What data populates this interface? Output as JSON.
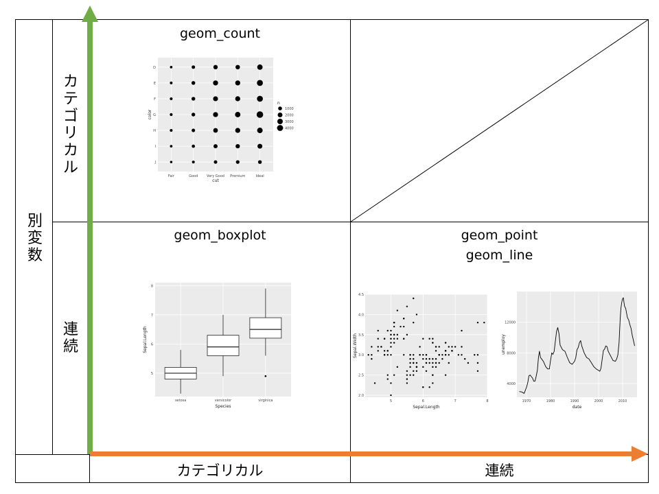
{
  "row_header": {
    "outer": "別変数",
    "categorical": "カテゴリカル",
    "continuous": "連続"
  },
  "col_header": {
    "categorical": "カテゴリカル",
    "continuous": "連続"
  },
  "cells": {
    "cat_cat": "geom_count",
    "cat_cont": "geom_boxplot",
    "cont_cont_1": "geom_point",
    "cont_cont_2": "geom_line"
  },
  "colors": {
    "y_arrow": "#70ad47",
    "x_arrow": "#ed7d31",
    "panel_bg": "#ebebeb"
  },
  "chart_data": [
    {
      "type": "scatter",
      "title": "geom_count",
      "xlabel": "cut",
      "ylabel": "color",
      "categories_x": [
        "Fair",
        "Good",
        "Very Good",
        "Premium",
        "Ideal"
      ],
      "categories_y": [
        "D",
        "E",
        "F",
        "G",
        "H",
        "I",
        "J"
      ],
      "legend_title": "n",
      "legend": [
        "1000",
        "2000",
        "3000",
        "4000"
      ],
      "legend_placement": "right",
      "grid": true,
      "counts": [
        [
          163,
          662,
          1513,
          1603,
          2834
        ],
        [
          224,
          933,
          2400,
          2337,
          3903
        ],
        [
          312,
          909,
          2164,
          2331,
          3826
        ],
        [
          314,
          871,
          2299,
          2924,
          4884
        ],
        [
          303,
          702,
          1824,
          2360,
          3115
        ],
        [
          175,
          522,
          1204,
          1428,
          2093
        ],
        [
          119,
          307,
          678,
          808,
          896
        ]
      ]
    },
    {
      "type": "box",
      "title": "geom_boxplot",
      "xlabel": "Species",
      "ylabel": "Sepal.Length",
      "categories": [
        "setosa",
        "versicolor",
        "virginica"
      ],
      "yticks": [
        5,
        6,
        7,
        8
      ],
      "ylim": [
        4.2,
        8.1
      ],
      "grid": true,
      "boxes": [
        {
          "min": 4.3,
          "q1": 4.8,
          "median": 5.0,
          "q3": 5.2,
          "max": 5.8,
          "outliers": []
        },
        {
          "min": 4.9,
          "q1": 5.6,
          "median": 5.9,
          "q3": 6.3,
          "max": 7.0,
          "outliers": []
        },
        {
          "min": 5.6,
          "q1": 6.2,
          "median": 6.5,
          "q3": 6.9,
          "max": 7.9,
          "outliers": [
            4.9
          ]
        }
      ]
    },
    {
      "type": "scatter",
      "title": "geom_point",
      "xlabel": "Sepal.Length",
      "ylabel": "Sepal.Width",
      "xticks": [
        5,
        6,
        7,
        8
      ],
      "yticks": [
        "2.0",
        "2.5",
        "3.0",
        "3.5",
        "4.0",
        "4.5"
      ],
      "xlim": [
        4.2,
        8.0
      ],
      "ylim": [
        1.95,
        4.5
      ],
      "grid": true,
      "points": [
        [
          5.1,
          3.5
        ],
        [
          4.9,
          3.0
        ],
        [
          4.7,
          3.2
        ],
        [
          4.6,
          3.1
        ],
        [
          5.0,
          3.6
        ],
        [
          5.4,
          3.9
        ],
        [
          4.6,
          3.4
        ],
        [
          5.0,
          3.4
        ],
        [
          4.4,
          2.9
        ],
        [
          4.9,
          3.1
        ],
        [
          5.4,
          3.7
        ],
        [
          4.8,
          3.4
        ],
        [
          4.8,
          3.0
        ],
        [
          4.3,
          3.0
        ],
        [
          5.8,
          4.0
        ],
        [
          5.7,
          4.4
        ],
        [
          5.4,
          3.9
        ],
        [
          5.1,
          3.5
        ],
        [
          5.7,
          3.8
        ],
        [
          5.1,
          3.8
        ],
        [
          5.4,
          3.4
        ],
        [
          5.1,
          3.7
        ],
        [
          4.6,
          3.6
        ],
        [
          5.1,
          3.3
        ],
        [
          4.8,
          3.4
        ],
        [
          5.0,
          3.0
        ],
        [
          5.0,
          3.4
        ],
        [
          5.2,
          3.5
        ],
        [
          5.2,
          3.4
        ],
        [
          4.7,
          3.2
        ],
        [
          4.8,
          3.1
        ],
        [
          5.4,
          3.4
        ],
        [
          5.2,
          4.1
        ],
        [
          5.5,
          4.2
        ],
        [
          4.9,
          3.1
        ],
        [
          5.0,
          3.2
        ],
        [
          5.5,
          3.5
        ],
        [
          4.9,
          3.6
        ],
        [
          4.4,
          3.0
        ],
        [
          5.1,
          3.4
        ],
        [
          5.0,
          3.5
        ],
        [
          4.5,
          2.3
        ],
        [
          4.4,
          3.2
        ],
        [
          5.0,
          3.5
        ],
        [
          5.1,
          3.8
        ],
        [
          4.8,
          3.0
        ],
        [
          5.1,
          3.8
        ],
        [
          4.6,
          3.2
        ],
        [
          5.3,
          3.7
        ],
        [
          5.0,
          3.3
        ],
        [
          7.0,
          3.2
        ],
        [
          6.4,
          3.2
        ],
        [
          6.9,
          3.1
        ],
        [
          5.5,
          2.3
        ],
        [
          6.5,
          2.8
        ],
        [
          5.7,
          2.8
        ],
        [
          6.3,
          3.3
        ],
        [
          4.9,
          2.4
        ],
        [
          6.6,
          2.9
        ],
        [
          5.2,
          2.7
        ],
        [
          5.0,
          2.0
        ],
        [
          5.9,
          3.0
        ],
        [
          6.0,
          2.2
        ],
        [
          6.1,
          2.9
        ],
        [
          5.6,
          2.9
        ],
        [
          6.7,
          3.1
        ],
        [
          5.6,
          3.0
        ],
        [
          5.8,
          2.7
        ],
        [
          6.2,
          2.2
        ],
        [
          5.6,
          2.5
        ],
        [
          5.9,
          3.2
        ],
        [
          6.1,
          2.8
        ],
        [
          6.3,
          2.5
        ],
        [
          6.1,
          2.8
        ],
        [
          6.4,
          2.9
        ],
        [
          6.6,
          3.0
        ],
        [
          6.8,
          2.8
        ],
        [
          6.7,
          3.0
        ],
        [
          6.0,
          2.9
        ],
        [
          5.7,
          2.6
        ],
        [
          5.5,
          2.4
        ],
        [
          5.5,
          2.4
        ],
        [
          5.8,
          2.7
        ],
        [
          6.0,
          2.7
        ],
        [
          5.4,
          3.0
        ],
        [
          6.0,
          3.4
        ],
        [
          6.7,
          3.1
        ],
        [
          6.3,
          2.3
        ],
        [
          5.6,
          3.0
        ],
        [
          5.5,
          2.5
        ],
        [
          5.5,
          2.6
        ],
        [
          6.1,
          3.0
        ],
        [
          5.8,
          2.6
        ],
        [
          5.0,
          2.3
        ],
        [
          5.6,
          2.7
        ],
        [
          5.7,
          3.0
        ],
        [
          5.7,
          2.9
        ],
        [
          6.2,
          2.9
        ],
        [
          5.1,
          2.5
        ],
        [
          5.7,
          2.8
        ],
        [
          6.3,
          3.3
        ],
        [
          5.8,
          2.7
        ],
        [
          7.1,
          3.0
        ],
        [
          6.3,
          2.9
        ],
        [
          6.5,
          3.0
        ],
        [
          7.6,
          3.0
        ],
        [
          4.9,
          2.5
        ],
        [
          7.3,
          2.9
        ],
        [
          6.7,
          2.5
        ],
        [
          7.2,
          3.6
        ],
        [
          6.5,
          3.2
        ],
        [
          6.4,
          2.7
        ],
        [
          6.8,
          3.0
        ],
        [
          5.7,
          2.5
        ],
        [
          5.8,
          2.8
        ],
        [
          6.4,
          3.2
        ],
        [
          6.5,
          3.0
        ],
        [
          7.7,
          3.8
        ],
        [
          7.7,
          2.6
        ],
        [
          6.0,
          2.2
        ],
        [
          6.9,
          3.2
        ],
        [
          5.6,
          2.8
        ],
        [
          7.7,
          2.8
        ],
        [
          6.3,
          2.7
        ],
        [
          6.7,
          3.3
        ],
        [
          7.2,
          3.2
        ],
        [
          6.2,
          2.8
        ],
        [
          6.1,
          3.0
        ],
        [
          6.4,
          2.8
        ],
        [
          7.2,
          3.0
        ],
        [
          7.4,
          2.8
        ],
        [
          7.9,
          3.8
        ],
        [
          6.4,
          2.8
        ],
        [
          6.3,
          2.8
        ],
        [
          6.1,
          2.6
        ],
        [
          7.7,
          3.0
        ],
        [
          6.3,
          3.4
        ],
        [
          6.4,
          3.1
        ],
        [
          6.0,
          3.0
        ],
        [
          6.9,
          3.1
        ],
        [
          6.7,
          3.1
        ],
        [
          6.9,
          3.1
        ],
        [
          5.8,
          2.7
        ],
        [
          6.8,
          3.2
        ],
        [
          6.7,
          3.3
        ],
        [
          6.7,
          3.0
        ],
        [
          6.3,
          2.5
        ],
        [
          6.5,
          3.0
        ],
        [
          6.2,
          3.4
        ],
        [
          5.9,
          3.0
        ]
      ]
    },
    {
      "type": "line",
      "title": "geom_line",
      "xlabel": "date",
      "ylabel": "unemploy",
      "xticks": [
        "1970",
        "1980",
        "1990",
        "2000",
        "2010"
      ],
      "yticks": [
        "4000",
        "8000",
        "12000"
      ],
      "xlim": [
        1966,
        2016
      ],
      "ylim": [
        2200,
        16000
      ],
      "grid": true,
      "x": [
        1967,
        1968,
        1969,
        1970,
        1970.5,
        1971,
        1971.5,
        1972,
        1972.5,
        1973,
        1973.5,
        1974,
        1974.5,
        1975,
        1975.4,
        1975.8,
        1976.3,
        1977,
        1978,
        1978.8,
        1979.5,
        1980,
        1980.5,
        1981,
        1981.5,
        1982,
        1982.5,
        1983,
        1983.5,
        1984,
        1985,
        1986,
        1987,
        1988,
        1989,
        1990,
        1990.5,
        1991,
        1991.5,
        1992,
        1992.5,
        1993,
        1994,
        1995,
        1996,
        1997,
        1998,
        1999,
        2000,
        2000.5,
        2001,
        2001.5,
        2002,
        2002.5,
        2003,
        2003.5,
        2004,
        2005,
        2006,
        2007,
        2007.5,
        2008,
        2008.5,
        2009,
        2009.3,
        2009.6,
        2009.9,
        2010.3,
        2010.8,
        2011.3,
        2012,
        2012.5,
        2013,
        2013.5,
        2014,
        2014.5,
        2015
      ],
      "y": [
        2944,
        2900,
        2700,
        3500,
        4100,
        5000,
        5100,
        4900,
        4700,
        4300,
        4300,
        4900,
        5700,
        7500,
        8200,
        7400,
        7200,
        6900,
        6200,
        5900,
        5900,
        7000,
        8000,
        7800,
        8200,
        9500,
        10800,
        11300,
        10500,
        9000,
        8400,
        8200,
        7400,
        6700,
        6500,
        6900,
        7400,
        8400,
        8700,
        9300,
        9600,
        8900,
        8000,
        7400,
        7200,
        6700,
        6200,
        5900,
        5700,
        5600,
        6000,
        7200,
        8300,
        8500,
        8900,
        8800,
        8200,
        7600,
        7000,
        6900,
        7200,
        7700,
        9300,
        12500,
        13800,
        14500,
        15000,
        15200,
        14100,
        13800,
        12600,
        12300,
        11700,
        11200,
        10300,
        9600,
        8900
      ]
    }
  ]
}
